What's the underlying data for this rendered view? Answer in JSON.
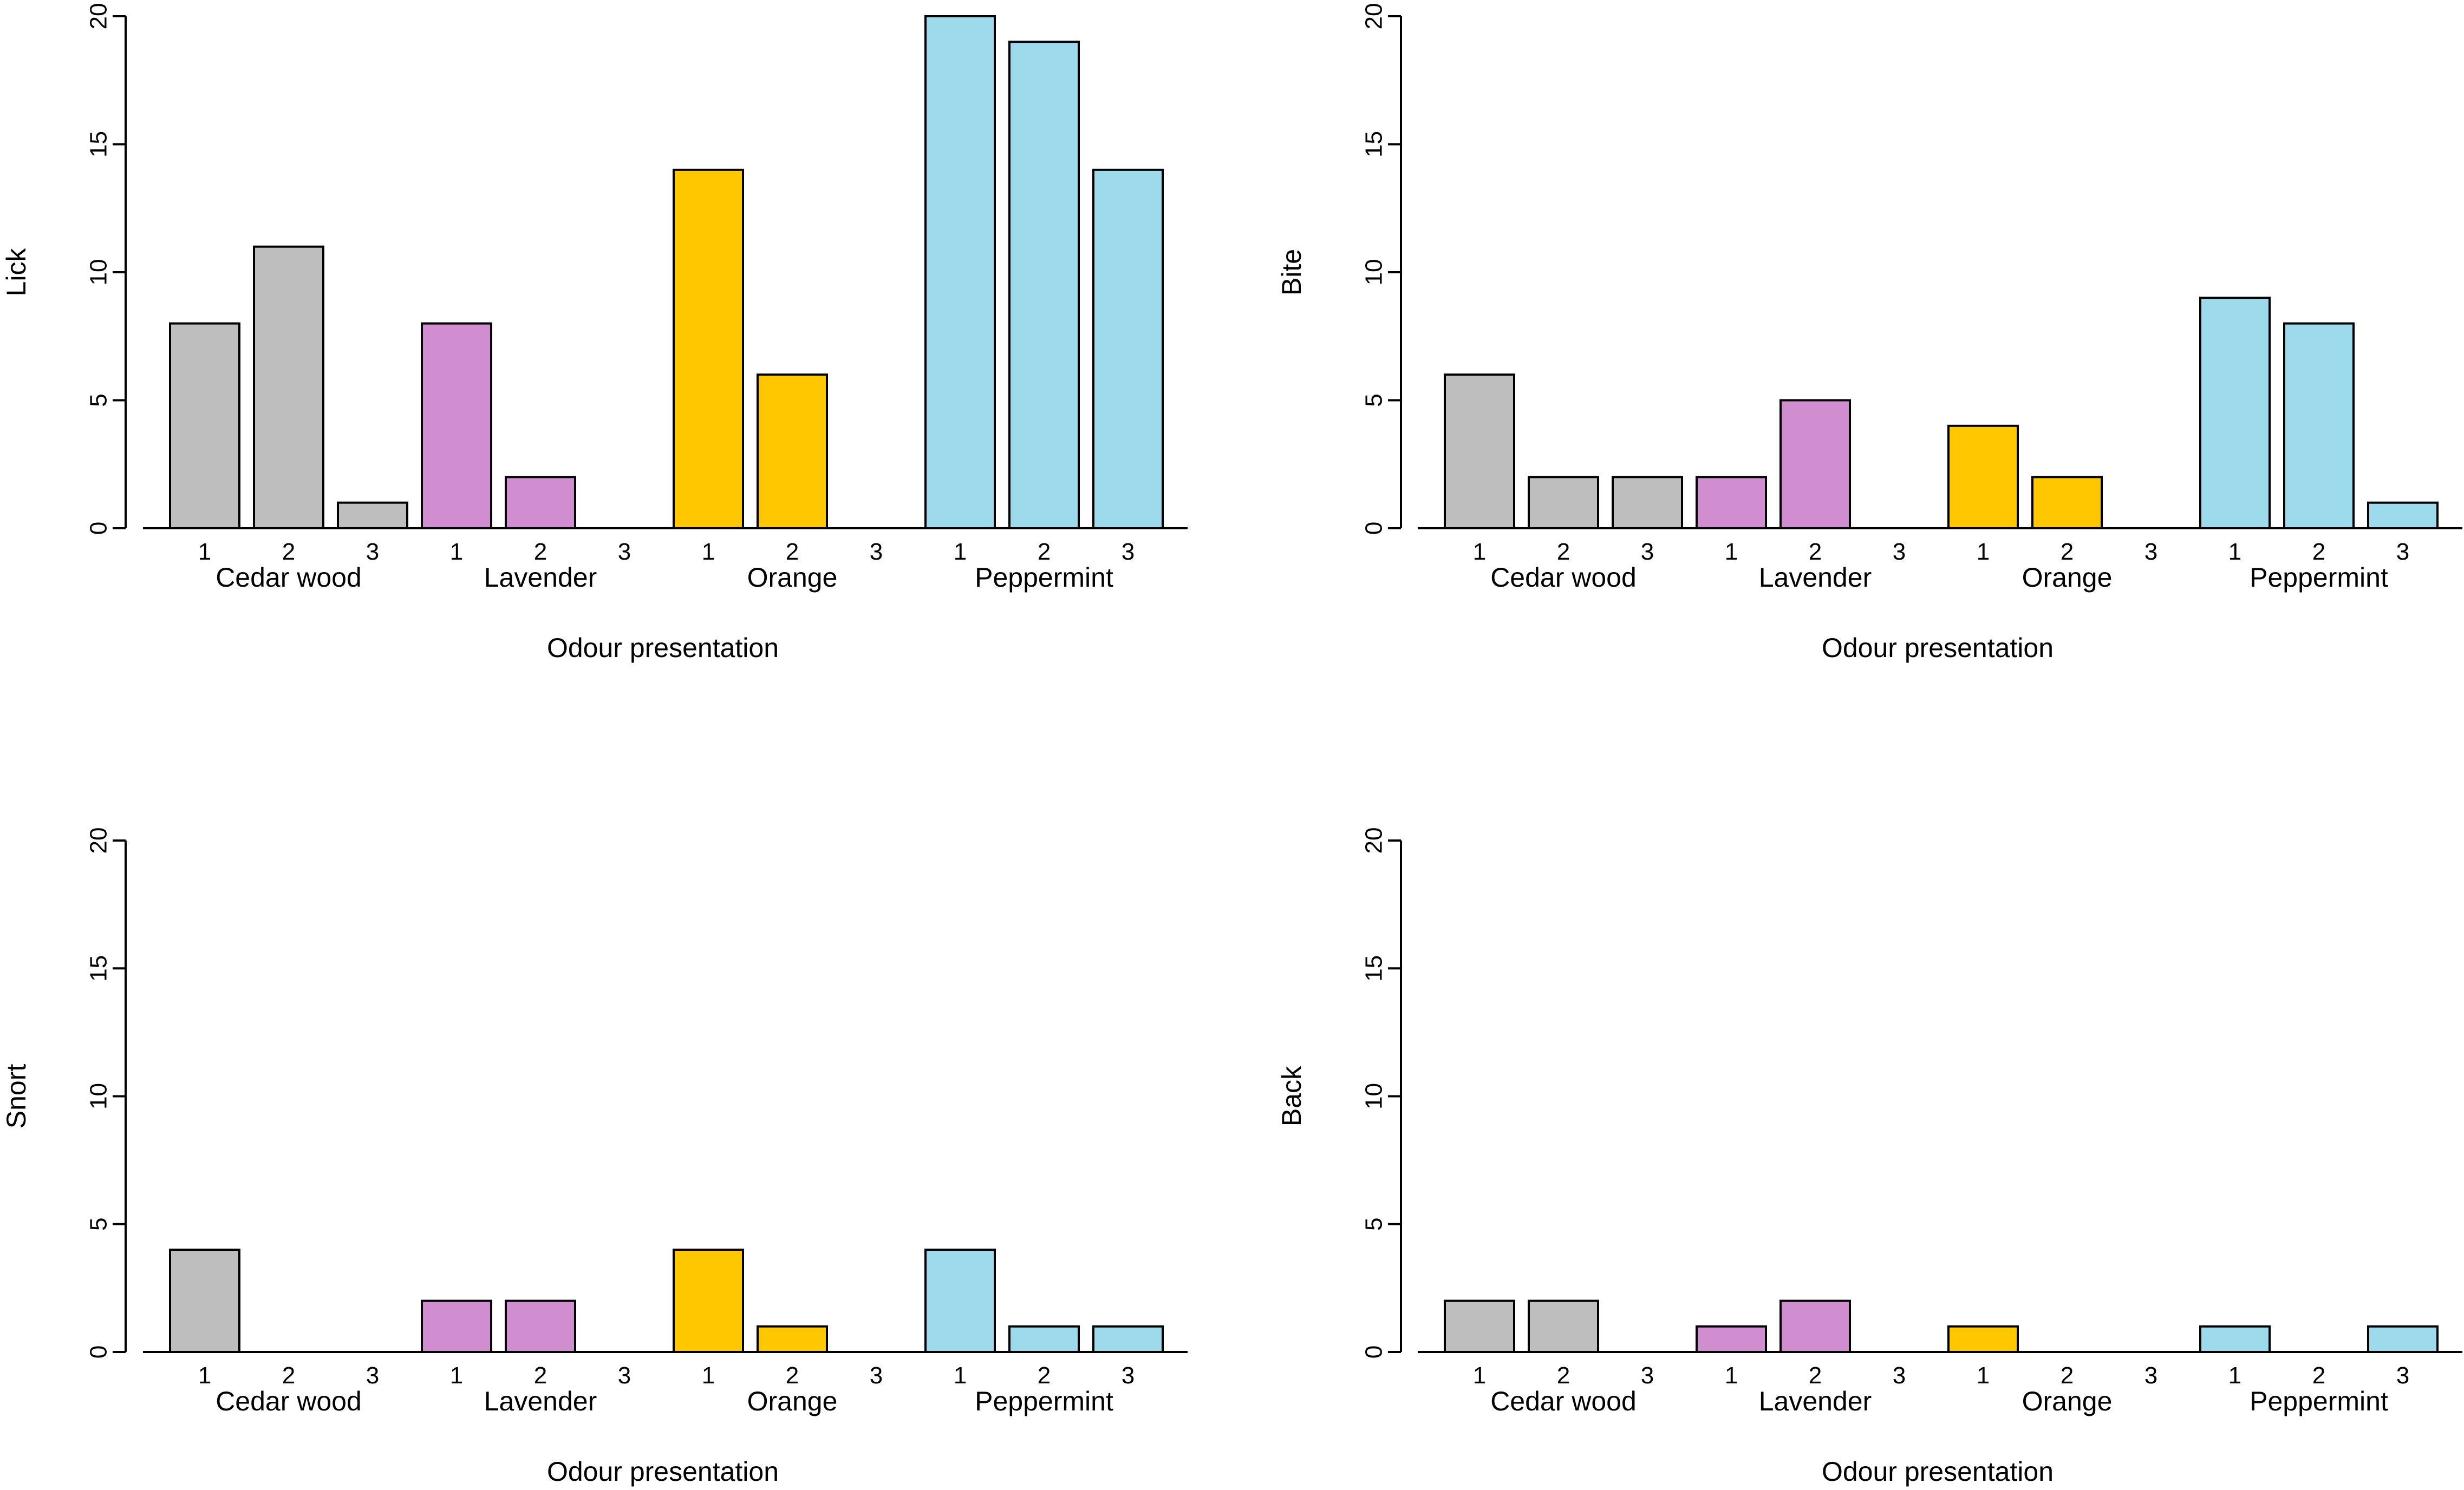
{
  "chart_data": [
    {
      "type": "bar",
      "title": "",
      "ylabel": "Lick",
      "xlabel": "Odour presentation",
      "ylim": [
        0,
        20
      ],
      "yticks": [
        "0",
        "5",
        "10",
        "15",
        "20"
      ],
      "groups": [
        "Cedar wood",
        "Lavender",
        "Orange",
        "Peppermint"
      ],
      "group_colors": [
        "#bebebe",
        "#d08ed0",
        "#ffc700",
        "#9ddaec"
      ],
      "presentations": [
        "1",
        "2",
        "3"
      ],
      "values": [
        [
          8,
          11,
          1
        ],
        [
          8,
          2,
          0
        ],
        [
          14,
          6,
          0
        ],
        [
          20,
          19,
          14
        ]
      ]
    },
    {
      "type": "bar",
      "title": "",
      "ylabel": "Bite",
      "xlabel": "Odour presentation",
      "ylim": [
        0,
        20
      ],
      "yticks": [
        "0",
        "5",
        "10",
        "15",
        "20"
      ],
      "groups": [
        "Cedar wood",
        "Lavender",
        "Orange",
        "Peppermint"
      ],
      "group_colors": [
        "#bebebe",
        "#d08ed0",
        "#ffc700",
        "#9ddaec"
      ],
      "presentations": [
        "1",
        "2",
        "3"
      ],
      "values": [
        [
          6,
          2,
          2
        ],
        [
          2,
          5,
          0
        ],
        [
          4,
          2,
          0
        ],
        [
          9,
          8,
          1
        ]
      ]
    },
    {
      "type": "bar",
      "title": "",
      "ylabel": "Snort",
      "xlabel": "Odour presentation",
      "ylim": [
        0,
        20
      ],
      "yticks": [
        "0",
        "5",
        "10",
        "15",
        "20"
      ],
      "groups": [
        "Cedar wood",
        "Lavender",
        "Orange",
        "Peppermint"
      ],
      "group_colors": [
        "#bebebe",
        "#d08ed0",
        "#ffc700",
        "#9ddaec"
      ],
      "presentations": [
        "1",
        "2",
        "3"
      ],
      "values": [
        [
          4,
          0,
          0
        ],
        [
          2,
          2,
          0
        ],
        [
          4,
          1,
          0
        ],
        [
          4,
          1,
          1
        ]
      ]
    },
    {
      "type": "bar",
      "title": "",
      "ylabel": "Back",
      "xlabel": "Odour presentation",
      "ylim": [
        0,
        20
      ],
      "yticks": [
        "0",
        "5",
        "10",
        "15",
        "20"
      ],
      "groups": [
        "Cedar wood",
        "Lavender",
        "Orange",
        "Peppermint"
      ],
      "group_colors": [
        "#bebebe",
        "#d08ed0",
        "#ffc700",
        "#9ddaec"
      ],
      "presentations": [
        "1",
        "2",
        "3"
      ],
      "values": [
        [
          2,
          2,
          0
        ],
        [
          1,
          2,
          0
        ],
        [
          1,
          0,
          0
        ],
        [
          1,
          0,
          1
        ]
      ]
    }
  ]
}
